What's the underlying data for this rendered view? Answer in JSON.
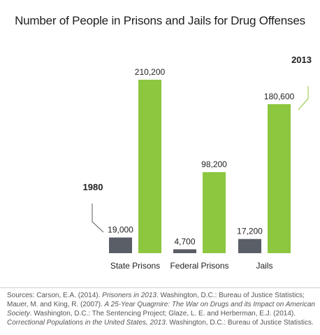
{
  "chart_data": {
    "type": "bar",
    "title": "Number of People in Prisons and Jails for Drug Offenses",
    "categories": [
      "State Prisons",
      "Federal Prisons",
      "Jails"
    ],
    "series": [
      {
        "name": "1980",
        "values": [
          19000,
          4700,
          17200
        ],
        "color": "#5a5e66",
        "value_labels": [
          "19,000",
          "4,700",
          "17,200"
        ]
      },
      {
        "name": "2013",
        "values": [
          210200,
          98200,
          180600
        ],
        "color": "#8dc63f",
        "value_labels": [
          "210,200",
          "98,200",
          "180,600"
        ]
      }
    ],
    "ylim": [
      0,
      210200
    ],
    "grid": false,
    "legend": "callout-labels"
  },
  "sources": {
    "prefix": "Sources: Carson, E.A. (2014). ",
    "t1": "Prisoners in 2013",
    "p1": ". Washington, D.C.: Bureau of Justice Statistics; Mauer, M. and King, R. (2007). ",
    "t2": "A 25-Year Quagmire: The War on Drugs and its Impact on American Society",
    "p2": ". Washington, D.C.: The Sentencing Project; Glaze, L. E. and Herberman, E.J. (2014). ",
    "t3": "Correctional Populations in the United States, 2013",
    "p3": ". Washington, D.C.: Bureau of Justice Statistics."
  }
}
